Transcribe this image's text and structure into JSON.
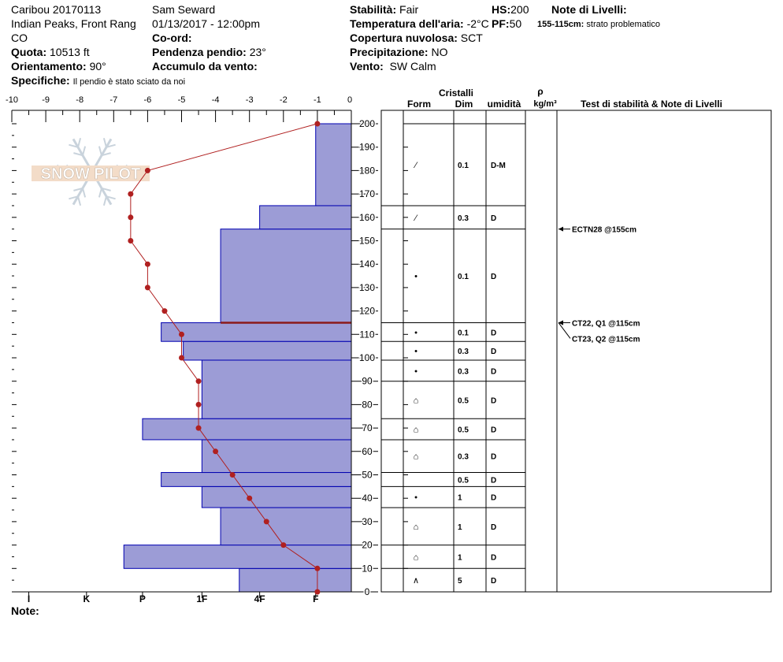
{
  "header": {
    "site": "Caribou 20170113",
    "observer": "Sam Seward",
    "region": "Indian Peaks, Front Rang",
    "datetime": "01/13/2017 - 12:00pm",
    "state": "CO",
    "coord_label": "Co-ord:",
    "elevation_label": "Quota:",
    "elevation_value": "10513 ft",
    "slope_label": "Pendenza pendio:",
    "slope_value": "23°",
    "aspect_label": "Orientamento:",
    "aspect_value": "90°",
    "wind_loading_label": "Accumulo da vento:",
    "specifics_label": "Specifiche:",
    "specifics_value": "Il pendio è stato sciato da noi",
    "stability_label": "Stabilità:",
    "stability_value": "Fair",
    "hs_label": "HS:",
    "hs_value": "200",
    "layer_notes_label": "Note di Livelli:",
    "layer_notes_value": "155-115cm:",
    "layer_notes_text": "strato problematico",
    "air_temp_label": "Temperatura dell'aria:",
    "air_temp_value": "-2°C",
    "pf_label": "PF:",
    "pf_value": "50",
    "cloud_label": "Copertura nuvolosa:",
    "cloud_value": "SCT",
    "precip_label": "Precipitazione:",
    "precip_value": "NO",
    "wind_label": "Vento:",
    "wind_value": "SW Calm"
  },
  "table_headers": {
    "crystals": "Cristalli",
    "form": "Form",
    "dim": "Dim",
    "humidity": "umidità",
    "rho": "ρ",
    "density_unit": "kg/m³",
    "stability_notes": "Test di stabilità & Note di Livelli"
  },
  "footer": {
    "notes_label": "Note:"
  },
  "logo_text": "SNOW PILOT",
  "colors": {
    "layer_fill": "#9c9cd6",
    "layer_edge": "#0000b0",
    "temp_line": "#b02020",
    "weak_layer": "#8b1a1a"
  },
  "chart_data": {
    "type": "snow_profile",
    "temperature_axis": {
      "range": [
        -10,
        0
      ],
      "ticks": [
        -10,
        -9,
        -8,
        -7,
        -6,
        -5,
        -4,
        -3,
        -2,
        -1,
        0
      ]
    },
    "height_axis": {
      "range": [
        0,
        200
      ],
      "ticks": [
        0,
        10,
        20,
        30,
        40,
        50,
        60,
        70,
        80,
        90,
        100,
        110,
        120,
        130,
        140,
        150,
        160,
        170,
        180,
        190,
        200
      ]
    },
    "hardness_axis": {
      "labels": [
        "I",
        "K",
        "P",
        "1F",
        "4F",
        "F"
      ],
      "temp_positions": [
        -9.5,
        -7.8,
        -6.15,
        -4.4,
        -2.7,
        -1.05
      ]
    },
    "hardness_layers": [
      {
        "bottom": 0,
        "top": 10,
        "left_temp": -3.3
      },
      {
        "bottom": 10,
        "top": 20,
        "left_temp": -6.7
      },
      {
        "bottom": 20,
        "top": 36,
        "left_temp": -3.85
      },
      {
        "bottom": 36,
        "top": 45,
        "left_temp": -4.4
      },
      {
        "bottom": 45,
        "top": 51,
        "left_temp": -5.6
      },
      {
        "bottom": 51,
        "top": 65,
        "left_temp": -4.4
      },
      {
        "bottom": 65,
        "top": 74,
        "left_temp": -6.15
      },
      {
        "bottom": 74,
        "top": 99,
        "left_temp": -4.4
      },
      {
        "bottom": 99,
        "top": 107,
        "left_temp": -4.95
      },
      {
        "bottom": 107,
        "top": 115,
        "left_temp": -5.6
      },
      {
        "bottom": 115,
        "top": 155,
        "left_temp": -3.85
      },
      {
        "bottom": 155,
        "top": 165,
        "left_temp": -2.7
      },
      {
        "bottom": 165,
        "top": 200,
        "left_temp": -1.05
      }
    ],
    "weak_layer_height": 115,
    "temperature_profile": [
      {
        "h": 0,
        "t": -1
      },
      {
        "h": 10,
        "t": -1
      },
      {
        "h": 20,
        "t": -2
      },
      {
        "h": 30,
        "t": -2.5
      },
      {
        "h": 40,
        "t": -3
      },
      {
        "h": 50,
        "t": -3.5
      },
      {
        "h": 60,
        "t": -4
      },
      {
        "h": 70,
        "t": -4.5
      },
      {
        "h": 80,
        "t": -4.5
      },
      {
        "h": 90,
        "t": -4.5
      },
      {
        "h": 100,
        "t": -5
      },
      {
        "h": 110,
        "t": -5
      },
      {
        "h": 120,
        "t": -5.5
      },
      {
        "h": 130,
        "t": -6
      },
      {
        "h": 140,
        "t": -6
      },
      {
        "h": 150,
        "t": -6.5
      },
      {
        "h": 160,
        "t": -6.5
      },
      {
        "h": 170,
        "t": -6.5
      },
      {
        "h": 180,
        "t": -6
      },
      {
        "h": 200,
        "t": -1
      }
    ],
    "crystal_layers": [
      {
        "bottom": 0,
        "top": 10,
        "form": "∧",
        "dim": "5",
        "humidity": "D"
      },
      {
        "bottom": 10,
        "top": 20,
        "form": "⌂",
        "dim": "1",
        "humidity": "D"
      },
      {
        "bottom": 20,
        "top": 36,
        "form": "⌂",
        "dim": "1",
        "humidity": "D"
      },
      {
        "bottom": 36,
        "top": 45,
        "form": "•",
        "dim": "1",
        "humidity": "D"
      },
      {
        "bottom": 45,
        "top": 51,
        "form": "",
        "dim": "0.5",
        "humidity": "D"
      },
      {
        "bottom": 51,
        "top": 65,
        "form": "⌂",
        "dim": "0.3",
        "humidity": "D"
      },
      {
        "bottom": 65,
        "top": 74,
        "form": "⌂",
        "dim": "0.5",
        "humidity": "D"
      },
      {
        "bottom": 74,
        "top": 90,
        "form": "⌂",
        "dim": "0.5",
        "humidity": "D"
      },
      {
        "bottom": 90,
        "top": 99,
        "form": "•",
        "dim": "0.3",
        "humidity": "D"
      },
      {
        "bottom": 99,
        "top": 107,
        "form": "•",
        "dim": "0.3",
        "humidity": "D"
      },
      {
        "bottom": 107,
        "top": 115,
        "form": "•",
        "dim": "0.1",
        "humidity": "D"
      },
      {
        "bottom": 115,
        "top": 155,
        "form": "•",
        "dim": "0.1",
        "humidity": "D"
      },
      {
        "bottom": 155,
        "top": 165,
        "form": "⁄",
        "dim": "0.3",
        "humidity": "D"
      },
      {
        "bottom": 165,
        "top": 200,
        "form": "⁄",
        "dim": "0.1",
        "humidity": "D-M"
      }
    ],
    "stability_tests": [
      {
        "height": 155,
        "label": "ECTN28 @155cm"
      },
      {
        "height": 115,
        "label": "CT22, Q1 @115cm"
      },
      {
        "height": 115,
        "label": "CT23, Q2 @115cm"
      }
    ]
  }
}
